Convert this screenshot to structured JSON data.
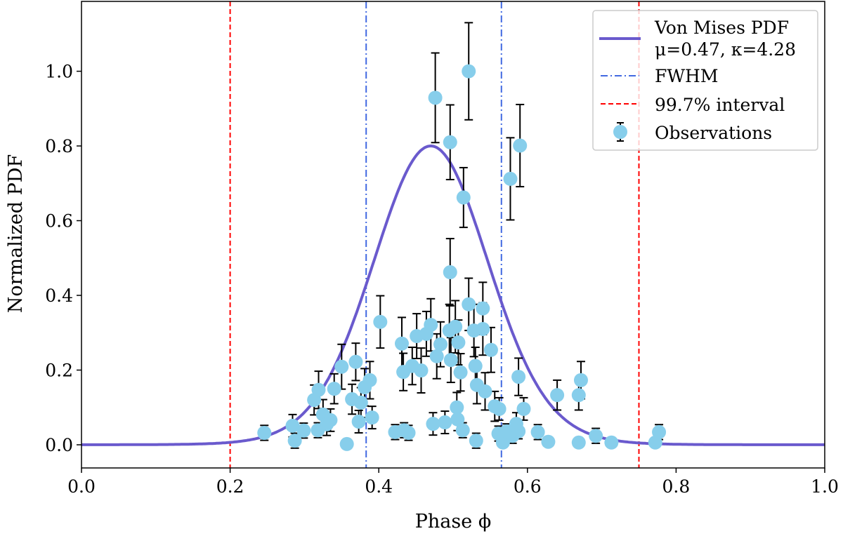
{
  "chart_data": {
    "type": "scatter",
    "xlabel": "Phase ϕ",
    "ylabel": "Normalized PDF",
    "xlim": [
      0,
      1
    ],
    "ylim": [
      -0.062,
      1.187
    ],
    "xticks": [
      "0.0",
      "0.2",
      "0.4",
      "0.6",
      "0.8",
      "1.0"
    ],
    "yticks": [
      "0.0",
      "0.2",
      "0.4",
      "0.6",
      "0.8",
      "1.0"
    ],
    "grid": false,
    "legend_position": "top-right",
    "legend": {
      "curve_line1": "Von Mises PDF",
      "curve_line2": "μ=0.47, κ=4.28",
      "fwhm": "FWHM",
      "interval": "99.7% interval",
      "observations": "Observations"
    },
    "curve": {
      "mu": 0.47,
      "kappa": 4.28,
      "peak": 0.8,
      "color": "#6a5acd"
    },
    "fwhm_lines": {
      "x": [
        0.383,
        0.565
      ],
      "color": "#4169e1"
    },
    "interval_lines": {
      "x": [
        0.2,
        0.75
      ],
      "color": "#ff0000"
    },
    "observations": {
      "color": "#87ceeb",
      "errorbar_color": "#000000",
      "points_x_y_err": [
        [
          0.246,
          0.032,
          0.02
        ],
        [
          0.284,
          0.051,
          0.03
        ],
        [
          0.287,
          0.011,
          0.02
        ],
        [
          0.299,
          0.038,
          0.02
        ],
        [
          0.313,
          0.12,
          0.04
        ],
        [
          0.319,
          0.147,
          0.05
        ],
        [
          0.318,
          0.039,
          0.02
        ],
        [
          0.325,
          0.081,
          0.04
        ],
        [
          0.33,
          0.055,
          0.03
        ],
        [
          0.335,
          0.066,
          0.03
        ],
        [
          0.34,
          0.15,
          0.04
        ],
        [
          0.35,
          0.209,
          0.06
        ],
        [
          0.357,
          0.002,
          0.01
        ],
        [
          0.364,
          0.122,
          0.04
        ],
        [
          0.369,
          0.222,
          0.05
        ],
        [
          0.373,
          0.062,
          0.03
        ],
        [
          0.376,
          0.113,
          0.04
        ],
        [
          0.381,
          0.154,
          0.05
        ],
        [
          0.388,
          0.173,
          0.05
        ],
        [
          0.391,
          0.073,
          0.03
        ],
        [
          0.402,
          0.329,
          0.07
        ],
        [
          0.422,
          0.034,
          0.02
        ],
        [
          0.431,
          0.271,
          0.07
        ],
        [
          0.433,
          0.195,
          0.05
        ],
        [
          0.434,
          0.039,
          0.02
        ],
        [
          0.44,
          0.032,
          0.02
        ],
        [
          0.445,
          0.211,
          0.05
        ],
        [
          0.451,
          0.291,
          0.06
        ],
        [
          0.457,
          0.199,
          0.06
        ],
        [
          0.464,
          0.297,
          0.06
        ],
        [
          0.47,
          0.321,
          0.07
        ],
        [
          0.473,
          0.056,
          0.03
        ],
        [
          0.476,
          0.929,
          0.12
        ],
        [
          0.478,
          0.237,
          0.06
        ],
        [
          0.483,
          0.269,
          0.06
        ],
        [
          0.489,
          0.06,
          0.03
        ],
        [
          0.495,
          0.306,
          0.07
        ],
        [
          0.496,
          0.81,
          0.1
        ],
        [
          0.496,
          0.462,
          0.09
        ],
        [
          0.497,
          0.227,
          0.06
        ],
        [
          0.503,
          0.316,
          0.07
        ],
        [
          0.505,
          0.1,
          0.04
        ],
        [
          0.506,
          0.068,
          0.03
        ],
        [
          0.507,
          0.274,
          0.06
        ],
        [
          0.51,
          0.194,
          0.05
        ],
        [
          0.513,
          0.039,
          0.02
        ],
        [
          0.514,
          0.662,
          0.08
        ],
        [
          0.521,
          1.0,
          0.13
        ],
        [
          0.521,
          0.376,
          0.07
        ],
        [
          0.528,
          0.306,
          0.07
        ],
        [
          0.53,
          0.211,
          0.05
        ],
        [
          0.531,
          0.011,
          0.02
        ],
        [
          0.532,
          0.16,
          0.05
        ],
        [
          0.54,
          0.31,
          0.07
        ],
        [
          0.54,
          0.365,
          0.07
        ],
        [
          0.543,
          0.143,
          0.05
        ],
        [
          0.551,
          0.254,
          0.06
        ],
        [
          0.556,
          0.103,
          0.04
        ],
        [
          0.562,
          0.096,
          0.03
        ],
        [
          0.561,
          0.03,
          0.02
        ],
        [
          0.567,
          0.006,
          0.01
        ],
        [
          0.572,
          0.036,
          0.02
        ],
        [
          0.577,
          0.712,
          0.11
        ],
        [
          0.58,
          0.024,
          0.02
        ],
        [
          0.585,
          0.056,
          0.03
        ],
        [
          0.588,
          0.182,
          0.05
        ],
        [
          0.59,
          0.801,
          0.11
        ],
        [
          0.588,
          0.036,
          0.02
        ],
        [
          0.595,
          0.096,
          0.03
        ],
        [
          0.614,
          0.034,
          0.02
        ],
        [
          0.628,
          0.008,
          0.01
        ],
        [
          0.64,
          0.133,
          0.04
        ],
        [
          0.669,
          0.006,
          0.01
        ],
        [
          0.669,
          0.133,
          0.04
        ],
        [
          0.672,
          0.173,
          0.05
        ],
        [
          0.692,
          0.024,
          0.02
        ],
        [
          0.713,
          0.006,
          0.01
        ],
        [
          0.772,
          0.006,
          0.01
        ],
        [
          0.777,
          0.034,
          0.02
        ]
      ]
    }
  }
}
